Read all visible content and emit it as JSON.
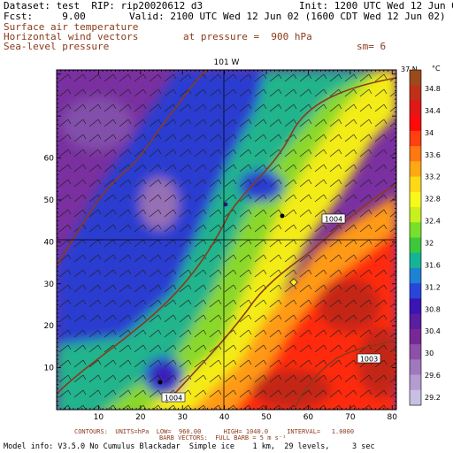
{
  "header": {
    "dataset": "Dataset: test  RIP: rip20020612 d3",
    "init": "Init: 1200 UTC Wed 12 Jun 02",
    "fcst": "Fcst:     9.00",
    "valid": "Valid: 2100 UTC Wed 12 Jun 02 (1600 CDT Wed 12 Jun 02)",
    "field1": "Surface air temperature",
    "field2": "Horizontal wind vectors",
    "field3": "Sea-level pressure",
    "pressure": "at pressure =  900 hPa",
    "sm": "sm= 6"
  },
  "map": {
    "top_label": "101 W",
    "right_label": "37 N",
    "x_ticks": [
      "10",
      "20",
      "30",
      "40",
      "50",
      "60",
      "70",
      "80"
    ],
    "y_ticks": [
      "10",
      "20",
      "30",
      "40",
      "50",
      "60"
    ],
    "pressure_labels": [
      "1004",
      "1004",
      "1003"
    ]
  },
  "colorbar": {
    "unit": "°C",
    "labels": [
      "34.8",
      "34.4",
      "34",
      "33.6",
      "33.2",
      "32.8",
      "32.4",
      "32",
      "31.6",
      "31.2",
      "30.8",
      "30.4",
      "30",
      "29.6",
      "29.2"
    ],
    "colors": [
      "#9c4a1a",
      "#c03018",
      "#e01818",
      "#ff0a0a",
      "#ff4010",
      "#ff7810",
      "#ffa812",
      "#ffd818",
      "#f8f81a",
      "#c8f01e",
      "#78e028",
      "#3cc83c",
      "#14b496",
      "#1e82d2",
      "#2846dc",
      "#3c14b4",
      "#5a1ea0",
      "#782896",
      "#8c50a8",
      "#a078be",
      "#b49cd2",
      "#c8c0e2"
    ]
  },
  "footer": {
    "contours": "CONTOURS:  UNITS=hPa  LOW=  960.00      HIGH= 1040.0     INTERVAL=   1.0000",
    "barbs": "BARB VECTORS:  FULL BARB = 5 m s⁻¹",
    "model": "Model info: V3.5.0 No Cumulus Blackadar  Simple ice    1 km,  29 levels,     3 sec"
  }
}
